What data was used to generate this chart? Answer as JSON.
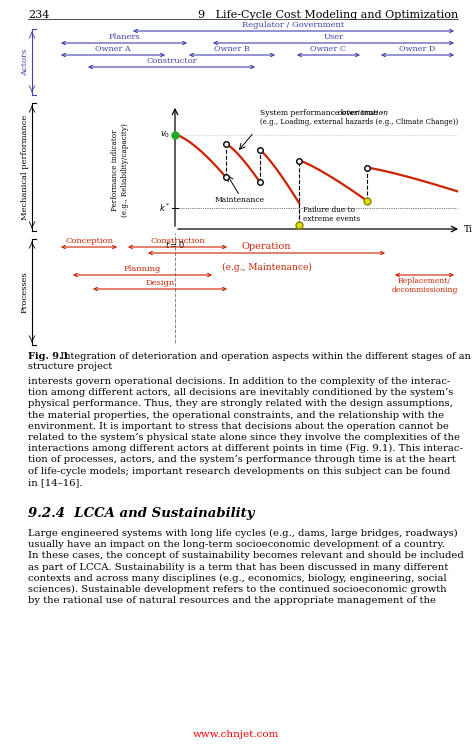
{
  "bg_color": "#ffffff",
  "page_num": "234",
  "chapter_header": "9   Life-Cycle Cost Modeling and Optimization",
  "actors_label": "Actors",
  "mech_perf_label": "Mechanical performance",
  "processes_label": "Processes",
  "actors_color": "#4040b0",
  "red_color": "#cc2200",
  "fig_caption_bold": "Fig. 9.1",
  "fig_caption_rest": "  Integration of deterioration and operation aspects within the different stages of an infra-",
  "fig_caption_line2": "structure project",
  "body_text_lines": [
    "interests govern operational decisions. In addition to the complexity of the interac-",
    "tion among different actors, all decisions are inevitably conditioned by the system’s",
    "physical performance. Thus, they are strongly related with the design assumptions,",
    "the material properties, the operational constraints, and the relationship with the",
    "environment. It is important to stress that decisions about the operation cannot be",
    "related to the system’s physical state alone since they involve the complexities of the",
    "interactions among different actors at different points in time (Fig. 9.1). This interac-",
    "tion of processes, actors, and the system’s performance through time is at the heart",
    "of life-cycle models; important research developments on this subject can be found",
    "in [14–16]."
  ],
  "section_heading": "9.2.4  LCCA and Sustainability",
  "paragraph2_lines": [
    "Large engineered systems with long life cycles (e.g., dams, large bridges, roadways)",
    "usually have an impact on the long-term socioeconomic development of a country.",
    "In these cases, the concept of sustainability becomes relevant and should be included",
    "as part of LCCA. Sustainability is a term that has been discussed in many different",
    "contexts and across many disciplines (e.g., economics, biology, engineering, social",
    "sciences). Sustainable development refers to the continued socioeconomic growth",
    "by the rational use of natural resources and the appropriate management of the"
  ],
  "watermark": "www.chnjet.com"
}
